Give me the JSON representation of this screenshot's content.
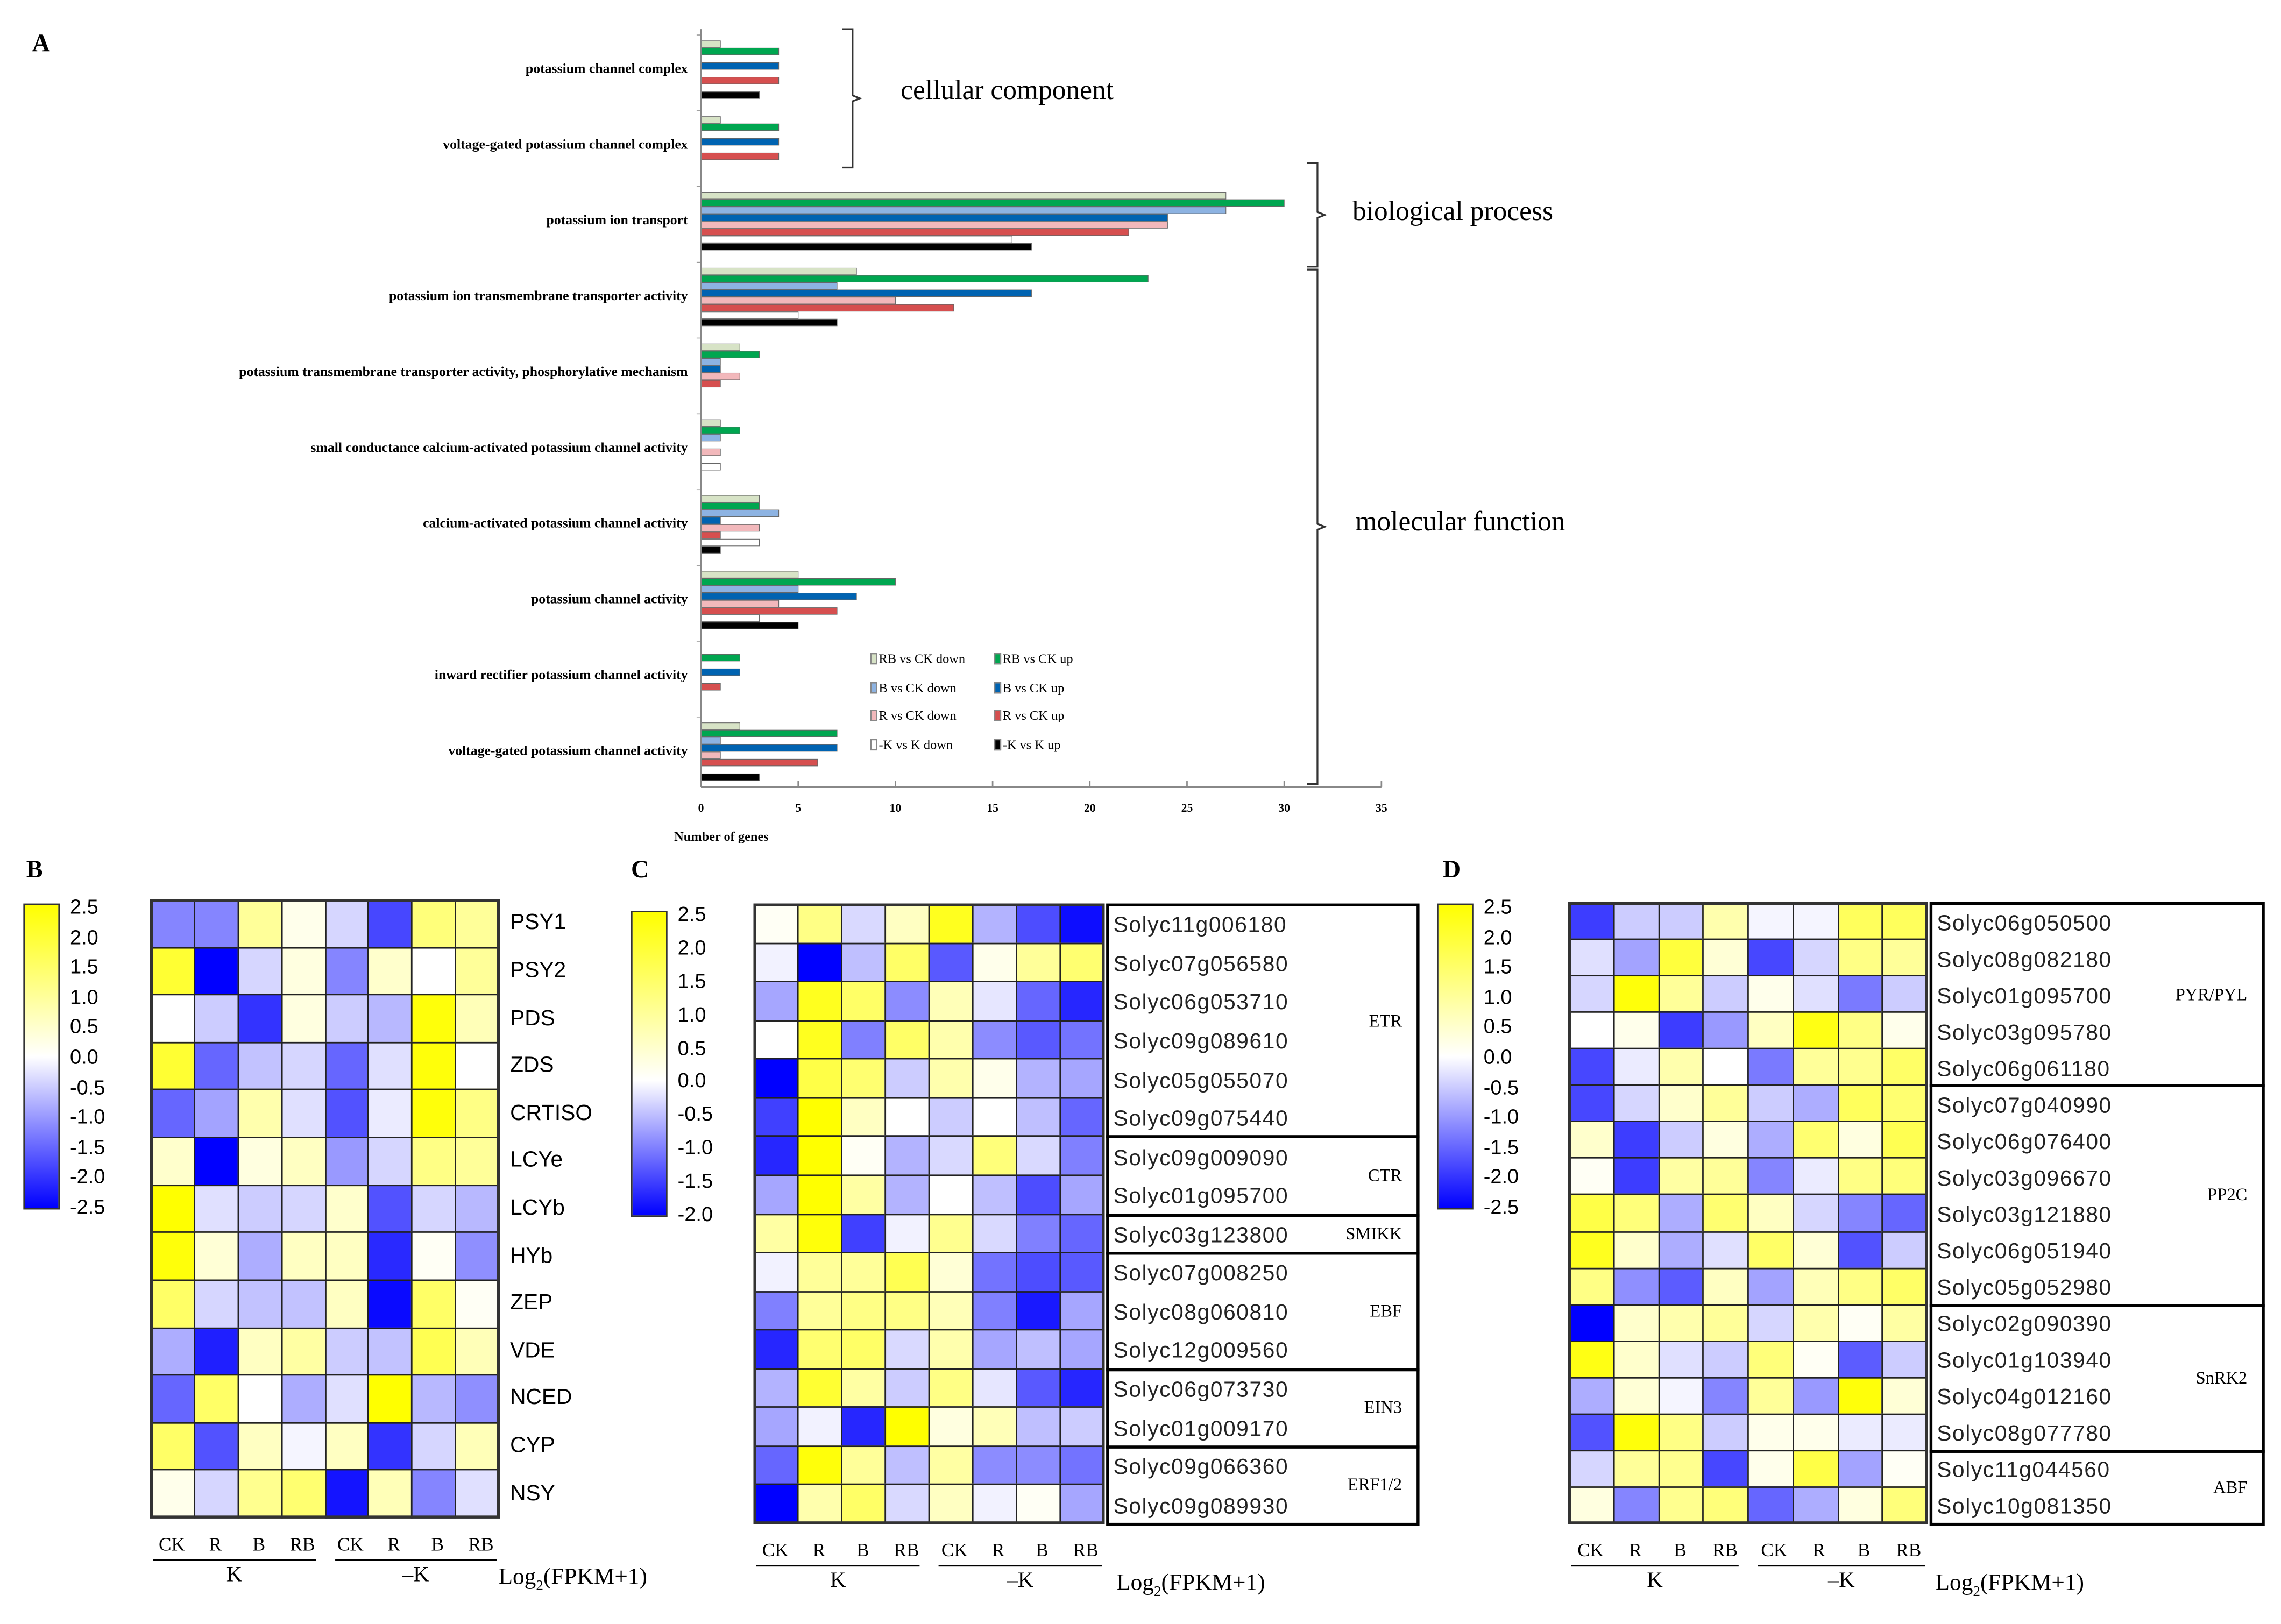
{
  "panels": {
    "a": "A",
    "b": "B",
    "c": "C",
    "d": "D"
  },
  "chart_data": [
    {
      "type": "bar",
      "orientation": "horizontal",
      "panel": "A",
      "xlabel": "Number of genes",
      "xlim": [
        0,
        35
      ],
      "xticks": [
        0,
        5,
        10,
        15,
        20,
        25,
        30,
        35
      ],
      "categories": [
        "potassium channel complex",
        "voltage-gated potassium channel complex",
        "potassium ion transport",
        "potassium ion transmembrane transporter activity",
        "potassium transmembrane transporter activity, phosphorylative mechanism",
        "small conductance calcium-activated potassium channel activity",
        "calcium-activated potassium channel activity",
        "potassium channel activity",
        "inward rectifier potassium channel activity",
        "voltage-gated potassium channel activity"
      ],
      "series": [
        {
          "name": "RB vs CK down",
          "color": "#d7e3c6",
          "values": [
            1,
            1,
            27,
            8,
            2,
            1,
            3,
            5,
            0,
            2
          ]
        },
        {
          "name": "RB vs CK up",
          "color": "#00a650",
          "values": [
            4,
            4,
            30,
            23,
            3,
            2,
            3,
            10,
            2,
            7
          ]
        },
        {
          "name": "B vs CK down",
          "color": "#8db3e2",
          "values": [
            0,
            0,
            27,
            7,
            1,
            1,
            4,
            5,
            0,
            1
          ]
        },
        {
          "name": "B vs CK up",
          "color": "#0063b1",
          "values": [
            4,
            4,
            24,
            17,
            1,
            0,
            1,
            8,
            2,
            7
          ]
        },
        {
          "name": "R vs CK down",
          "color": "#f2b8bb",
          "values": [
            0,
            0,
            24,
            10,
            2,
            1,
            3,
            4,
            0,
            1
          ]
        },
        {
          "name": "R vs CK up",
          "color": "#d64f4f",
          "values": [
            4,
            4,
            22,
            13,
            1,
            0,
            1,
            7,
            1,
            6
          ]
        },
        {
          "name": "-K vs K down",
          "color": "#ffffff",
          "values": [
            0,
            0,
            16,
            5,
            0,
            1,
            3,
            3,
            0,
            0
          ]
        },
        {
          "name": "-K vs K up",
          "color": "#000000",
          "values": [
            3,
            0,
            17,
            7,
            0,
            0,
            1,
            5,
            0,
            3
          ]
        }
      ],
      "legend_placement": "bottom-center",
      "annotations": [
        {
          "text": "cellular component",
          "categories": [
            0,
            1
          ]
        },
        {
          "text": "biological process",
          "categories": [
            2
          ]
        },
        {
          "text": "molecular function",
          "categories": [
            3,
            4,
            5,
            6,
            7,
            8,
            9
          ]
        }
      ]
    },
    {
      "type": "heatmap",
      "panel": "B",
      "rows": [
        "PSY1",
        "PSY2",
        "PDS",
        "ZDS",
        "CRTISO",
        "LCYe",
        "LCYb",
        "HYb",
        "ZEP",
        "VDE",
        "NCED",
        "CYP",
        "NSY"
      ],
      "columns": [
        "CK",
        "R",
        "B",
        "RB",
        "CK",
        "R",
        "B",
        "RB"
      ],
      "column_groups": [
        "K",
        "–K"
      ],
      "colorbar": {
        "ticks": [
          "2.5",
          "2.0",
          "1.5",
          "1.0",
          "0.5",
          "0.0",
          "-0.5",
          "-1.0",
          "-1.5",
          "-2.0",
          "-2.5"
        ],
        "max": 2.5,
        "min": -2.5,
        "high_color": "#ffff00",
        "mid_color": "#ffffff",
        "low_color": "#0000ff"
      },
      "unit": {
        "prefix": "Log",
        "sub": "2",
        "suffix": "(FPKM+1)"
      },
      "values": [
        [
          -1.2,
          -1.2,
          1.0,
          0.2,
          -0.4,
          -1.8,
          1.3,
          1.0
        ],
        [
          2.0,
          -2.5,
          -0.4,
          0.3,
          -1.2,
          0.5,
          0.0,
          1.0
        ],
        [
          0.0,
          -0.5,
          -2.0,
          0.3,
          -0.5,
          -0.7,
          2.4,
          0.7
        ],
        [
          2.0,
          -1.5,
          -0.6,
          -0.4,
          -1.5,
          -0.3,
          2.4,
          0.0
        ],
        [
          -1.5,
          -0.9,
          0.8,
          -0.3,
          -1.7,
          -0.2,
          2.4,
          1.2
        ],
        [
          0.5,
          -2.5,
          0.3,
          0.6,
          -1.0,
          -0.4,
          1.2,
          1.0
        ],
        [
          2.5,
          -0.3,
          -0.5,
          -0.4,
          0.5,
          -1.7,
          -0.4,
          -0.7
        ],
        [
          2.4,
          0.4,
          -0.8,
          0.6,
          0.6,
          -2.1,
          0.1,
          -1.1
        ],
        [
          1.5,
          -0.4,
          -0.6,
          -0.6,
          0.6,
          -2.4,
          1.5,
          0.1
        ],
        [
          -0.8,
          -2.2,
          0.6,
          0.9,
          -0.5,
          -0.6,
          1.7,
          0.7
        ],
        [
          -1.5,
          1.5,
          0.0,
          -0.8,
          -0.3,
          2.5,
          -0.7,
          -1.1
        ],
        [
          1.5,
          -1.7,
          0.6,
          -0.1,
          0.6,
          -2.0,
          -0.4,
          0.7
        ],
        [
          0.2,
          -0.4,
          1.1,
          1.4,
          -2.3,
          0.7,
          -1.2,
          -0.3
        ]
      ]
    },
    {
      "type": "heatmap",
      "panel": "C",
      "rows": [
        "Solyc11g006180",
        "Solyc07g056580",
        "Solyc06g053710",
        "Solyc09g089610",
        "Solyc05g055070",
        "Solyc09g075440",
        "Solyc09g009090",
        "Solyc01g095700",
        "Solyc03g123800",
        "Solyc07g008250",
        "Solyc08g060810",
        "Solyc12g009560",
        "Solyc06g073730",
        "Solyc01g009170",
        "Solyc09g066360",
        "Solyc09g089930"
      ],
      "row_groups": [
        {
          "label": "ETR",
          "count": 6
        },
        {
          "label": "CTR",
          "count": 2
        },
        {
          "label": "SMIKK",
          "count": 1
        },
        {
          "label": "EBF",
          "count": 3
        },
        {
          "label": "EIN3",
          "count": 2
        },
        {
          "label": "ERF1/2",
          "count": 2
        }
      ],
      "columns": [
        "CK",
        "R",
        "B",
        "RB",
        "CK",
        "R",
        "B",
        "RB"
      ],
      "column_groups": [
        "K",
        "–K"
      ],
      "colorbar": {
        "ticks": [
          "2.5",
          "2.0",
          "1.5",
          "1.0",
          "0.5",
          "0.0",
          "-0.5",
          "-1.0",
          "-1.5",
          "-2.0"
        ],
        "max": 2.5,
        "min": -2.0,
        "high_color": "#ffff00",
        "mid_color": "#ffffff",
        "low_color": "#0000ff"
      },
      "unit": {
        "prefix": "Log",
        "sub": "2",
        "suffix": "(FPKM+1)"
      },
      "values": [
        [
          0.1,
          1.2,
          -0.3,
          0.6,
          2.2,
          -0.6,
          -1.4,
          -1.9
        ],
        [
          -0.1,
          -2.0,
          -0.5,
          1.5,
          -1.3,
          0.2,
          1.0,
          1.4
        ],
        [
          -0.7,
          2.2,
          1.5,
          -0.9,
          0.7,
          -0.2,
          -1.2,
          -1.7
        ],
        [
          0.0,
          2.2,
          -1.0,
          1.5,
          0.8,
          -0.9,
          -1.3,
          -1.1
        ],
        [
          -2.0,
          1.8,
          1.4,
          -0.4,
          0.8,
          0.2,
          -0.6,
          -0.7
        ],
        [
          -1.5,
          2.5,
          0.6,
          0.0,
          -0.4,
          0.0,
          -0.5,
          -1.2
        ],
        [
          -1.7,
          2.5,
          0.1,
          -0.6,
          -0.3,
          1.3,
          -0.3,
          -1.0
        ],
        [
          -0.7,
          2.5,
          0.9,
          -0.6,
          0.0,
          -0.5,
          -1.4,
          -0.7
        ],
        [
          0.9,
          2.4,
          -1.5,
          -0.1,
          1.1,
          -0.3,
          -1.0,
          -1.2
        ],
        [
          -0.1,
          1.0,
          1.0,
          1.7,
          0.4,
          -1.1,
          -1.4,
          -1.3
        ],
        [
          -1.0,
          1.0,
          1.2,
          1.2,
          0.7,
          -1.0,
          -1.8,
          -0.7
        ],
        [
          -1.7,
          1.4,
          1.5,
          -0.3,
          0.8,
          -0.7,
          -0.5,
          -0.7
        ],
        [
          -0.6,
          2.0,
          0.9,
          -0.4,
          1.2,
          -0.2,
          -1.3,
          -1.7
        ],
        [
          -0.7,
          -0.1,
          -1.7,
          2.5,
          0.3,
          0.7,
          -0.5,
          -0.4
        ],
        [
          -1.2,
          2.4,
          1.0,
          -0.5,
          0.9,
          -0.9,
          -0.9,
          -1.1
        ],
        [
          -2.0,
          0.8,
          1.5,
          -0.3,
          0.6,
          -0.1,
          0.1,
          -0.7
        ]
      ]
    },
    {
      "type": "heatmap",
      "panel": "D",
      "rows": [
        "Solyc06g050500",
        "Solyc08g082180",
        "Solyc01g095700",
        "Solyc03g095780",
        "Solyc06g061180",
        "Solyc07g040990",
        "Solyc06g076400",
        "Solyc03g096670",
        "Solyc03g121880",
        "Solyc06g051940",
        "Solyc05g052980",
        "Solyc02g090390",
        "Solyc01g103940",
        "Solyc04g012160",
        "Solyc08g077780",
        "Solyc11g044560",
        "Solyc10g081350"
      ],
      "row_groups": [
        {
          "label": "PYR/PYL",
          "count": 5
        },
        {
          "label": "PP2C",
          "count": 6
        },
        {
          "label": "SnRK2",
          "count": 4
        },
        {
          "label": "ABF",
          "count": 2
        }
      ],
      "columns": [
        "CK",
        "R",
        "B",
        "RB",
        "CK",
        "R",
        "B",
        "RB"
      ],
      "column_groups": [
        "K",
        "–K"
      ],
      "colorbar": {
        "ticks": [
          "2.5",
          "2.0",
          "1.5",
          "1.0",
          "0.5",
          "0.0",
          "-0.5",
          "-1.0",
          "-1.5",
          "-2.0",
          "-2.5"
        ],
        "max": 2.5,
        "min": -2.5,
        "high_color": "#ffff00",
        "mid_color": "#ffffff",
        "low_color": "#0000ff"
      },
      "unit": {
        "prefix": "Log",
        "sub": "2",
        "suffix": "(FPKM+1)"
      },
      "values": [
        [
          -1.9,
          -0.5,
          -0.5,
          0.8,
          -0.1,
          -0.1,
          1.6,
          1.6
        ],
        [
          -0.3,
          -0.9,
          1.9,
          0.4,
          -1.8,
          -0.4,
          1.2,
          1.0
        ],
        [
          -0.4,
          2.4,
          1.0,
          -0.5,
          0.2,
          -0.3,
          -1.3,
          -0.5
        ],
        [
          0.0,
          0.2,
          -1.9,
          -1.0,
          0.6,
          2.3,
          1.2,
          0.2
        ],
        [
          -1.8,
          -0.2,
          0.8,
          0.0,
          -1.3,
          1.0,
          1.1,
          1.5
        ],
        [
          -1.8,
          -0.4,
          0.5,
          1.0,
          -0.5,
          -0.8,
          1.6,
          1.4
        ],
        [
          0.5,
          -1.9,
          -0.5,
          0.3,
          -0.8,
          1.4,
          0.3,
          1.7
        ],
        [
          0.1,
          -1.9,
          0.9,
          1.0,
          -1.2,
          -0.2,
          1.2,
          1.3
        ],
        [
          1.8,
          1.3,
          -0.8,
          1.4,
          0.6,
          -0.4,
          -1.2,
          -1.5
        ],
        [
          2.2,
          0.5,
          -0.8,
          -0.3,
          1.5,
          0.4,
          -1.7,
          -0.5
        ],
        [
          1.2,
          -1.1,
          -1.6,
          0.6,
          -0.9,
          0.7,
          1.2,
          1.5
        ],
        [
          -2.5,
          0.5,
          0.8,
          1.0,
          -0.4,
          0.8,
          0.1,
          0.9
        ],
        [
          2.3,
          0.5,
          -0.3,
          -0.5,
          1.3,
          0.1,
          -1.6,
          -0.5
        ],
        [
          -0.8,
          0.4,
          -0.1,
          -1.2,
          1.0,
          -1.0,
          2.4,
          0.4
        ],
        [
          -1.7,
          2.4,
          1.2,
          -0.5,
          0.2,
          0.2,
          -0.2,
          -0.2
        ],
        [
          -0.4,
          1.0,
          1.1,
          -1.8,
          0.2,
          1.8,
          -0.9,
          0.1
        ],
        [
          0.3,
          -1.2,
          1.1,
          1.3,
          -1.5,
          -0.8,
          0.3,
          1.3
        ]
      ]
    }
  ]
}
